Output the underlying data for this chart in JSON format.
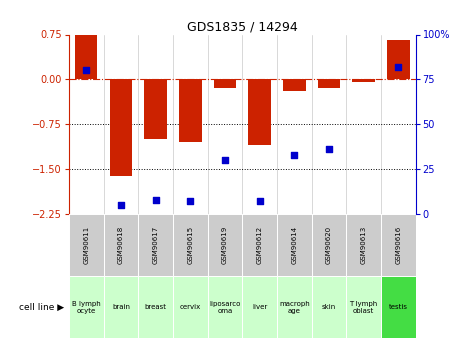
{
  "title": "GDS1835 / 14294",
  "samples": [
    "GSM90611",
    "GSM90618",
    "GSM90617",
    "GSM90615",
    "GSM90619",
    "GSM90612",
    "GSM90614",
    "GSM90620",
    "GSM90613",
    "GSM90616"
  ],
  "cell_lines": [
    "B lymph\nocyte",
    "brain",
    "breast",
    "cervix",
    "liposarco\noma",
    "liver",
    "macroph\nage",
    "skin",
    "T lymph\noblast",
    "testis"
  ],
  "log2_ratio": [
    0.75,
    -1.62,
    -1.0,
    -1.05,
    -0.15,
    -1.1,
    -0.2,
    -0.15,
    -0.05,
    0.65
  ],
  "percentile_rank": [
    80,
    5,
    8,
    7,
    30,
    7,
    33,
    36,
    null,
    82
  ],
  "ylim_left": [
    -2.25,
    0.75
  ],
  "ylim_right": [
    0,
    100
  ],
  "yticks_left": [
    0.75,
    0,
    -0.75,
    -1.5,
    -2.25
  ],
  "yticks_right": [
    100,
    75,
    50,
    25,
    0
  ],
  "bar_color": "#cc2200",
  "dot_color": "#0000cc",
  "background_color": "#ffffff",
  "cell_colors": [
    "#ccffcc",
    "#ccffcc",
    "#ccffcc",
    "#ccffcc",
    "#ccffcc",
    "#ccffcc",
    "#ccffcc",
    "#ccffcc",
    "#ccffcc",
    "#44dd44"
  ],
  "sample_bg": "#cccccc",
  "legend_log2_color": "#cc2200",
  "legend_pct_color": "#0000cc"
}
